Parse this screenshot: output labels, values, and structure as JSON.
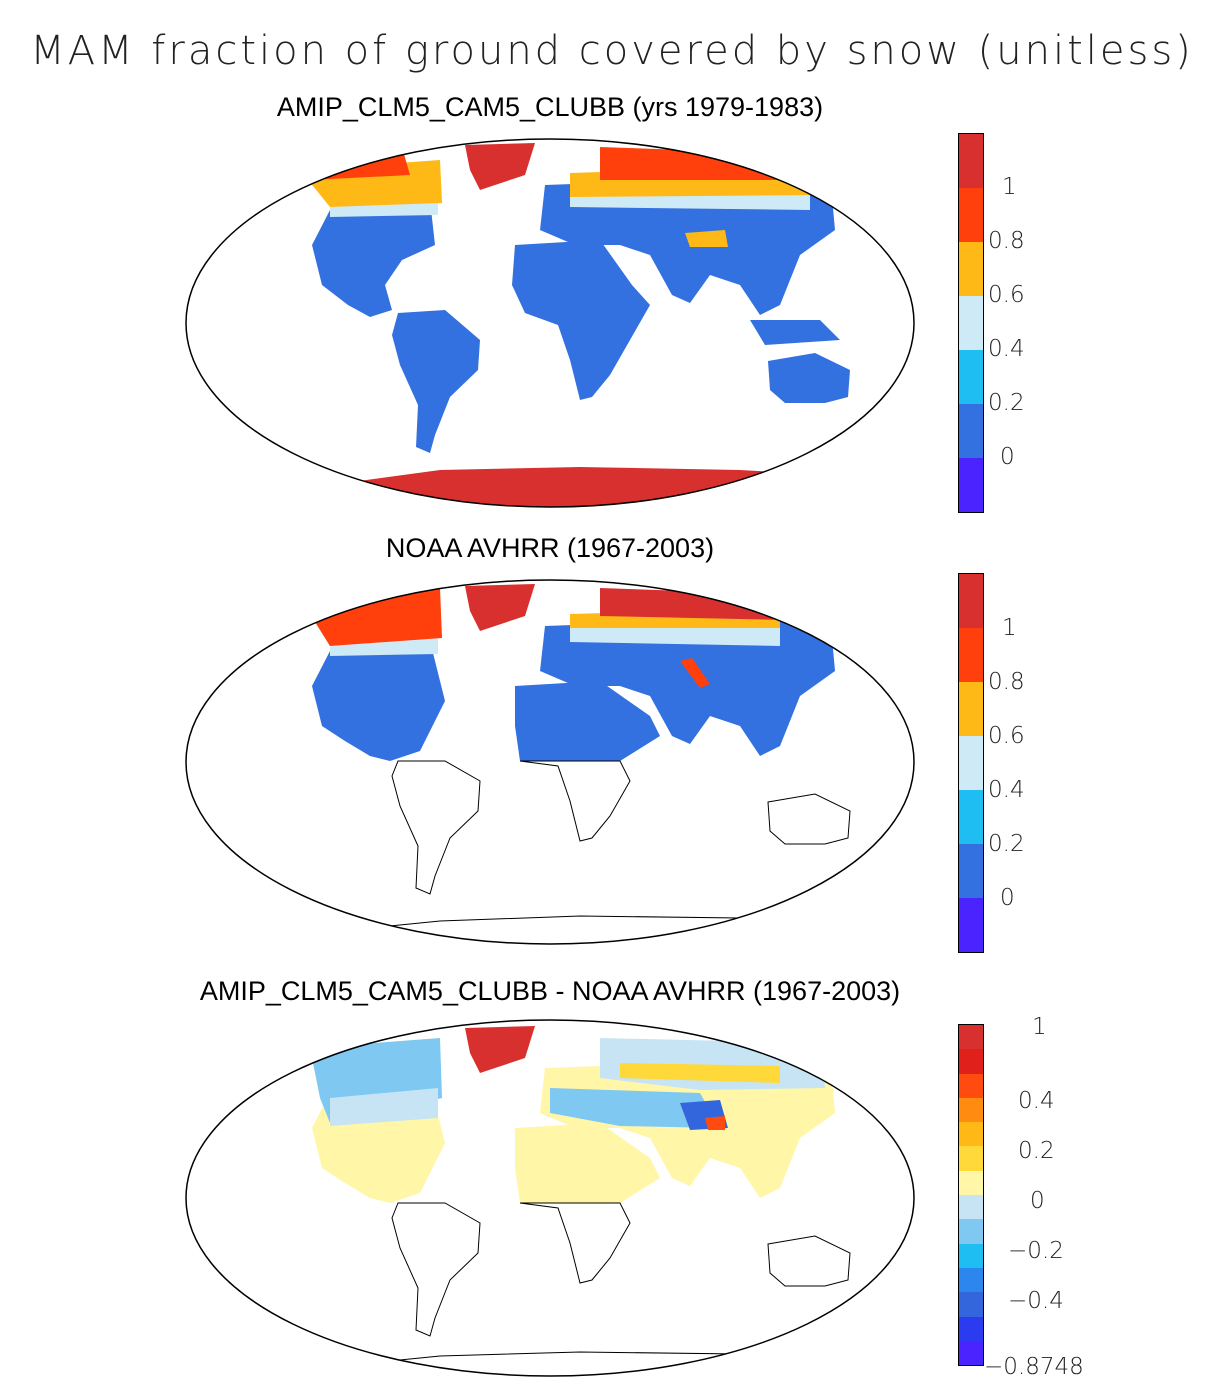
{
  "title": "MAM fraction of ground covered by snow (unitless)",
  "panels": [
    {
      "title": "AMIP_CLM5_CAM5_CLUBB (yrs 1979-1983)",
      "colorbar": {
        "colors": [
          "#d8302f",
          "#ff3f0c",
          "#ffb916",
          "#cfeaf7",
          "#1ebdf2",
          "#3370e0",
          "#4a23ff"
        ],
        "tick_labels": [
          "1",
          "0.8",
          "0.6",
          "0.4",
          "0.2",
          "0"
        ]
      }
    },
    {
      "title": "NOAA AVHRR (1967-2003)",
      "colorbar": {
        "colors": [
          "#d8302f",
          "#ff3f0c",
          "#ffb916",
          "#cfeaf7",
          "#1ebdf2",
          "#3370e0",
          "#4a23ff"
        ],
        "tick_labels": [
          "1",
          "0.8",
          "0.6",
          "0.4",
          "0.2",
          "0"
        ]
      }
    },
    {
      "title": "AMIP_CLM5_CAM5_CLUBB - NOAA AVHRR (1967-2003)",
      "colorbar": {
        "colors": [
          "#d8302f",
          "#e0201a",
          "#ff4a10",
          "#ff8c10",
          "#ffb916",
          "#ffd93a",
          "#fff6a8",
          "#c6e4f4",
          "#7ec8f2",
          "#1ebdf2",
          "#2b86ee",
          "#3366dd",
          "#2a3bf0",
          "#4a23ff"
        ],
        "tick_labels": [
          "1",
          "0.4",
          "0.2",
          "0",
          "−0.2",
          "−0.4",
          "−0.8748"
        ]
      }
    }
  ],
  "chart_data": {
    "type": "heatmap",
    "projection": "Robinson (global)",
    "variable": "fraction of ground covered by snow",
    "season": "MAM",
    "units": "unitless",
    "maps": [
      {
        "name": "AMIP_CLM5_CAM5_CLUBB (yrs 1979-1983)",
        "contour_levels": [
          0,
          0.2,
          0.4,
          0.6,
          0.8,
          1
        ]
      },
      {
        "name": "NOAA AVHRR (1967-2003)",
        "contour_levels": [
          0,
          0.2,
          0.4,
          0.6,
          0.8,
          1
        ]
      },
      {
        "name": "AMIP_CLM5_CAM5_CLUBB - NOAA AVHRR (1967-2003)",
        "contour_levels": [
          -0.8748,
          -0.4,
          -0.2,
          0,
          0.2,
          0.4,
          1
        ]
      }
    ]
  }
}
